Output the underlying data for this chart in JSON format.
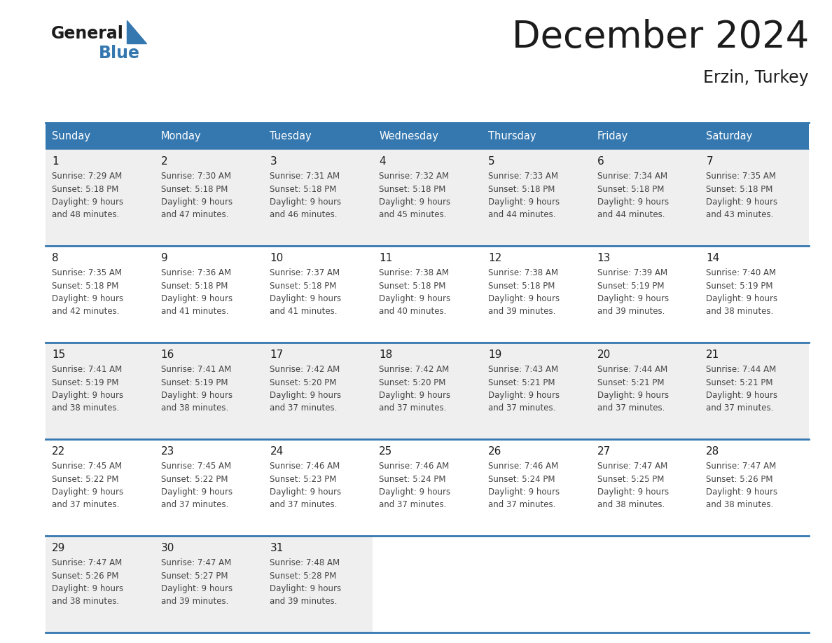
{
  "title": "December 2024",
  "subtitle": "Erzin, Turkey",
  "header_color": "#3578b0",
  "header_text_color": "#ffffff",
  "weekdays": [
    "Sunday",
    "Monday",
    "Tuesday",
    "Wednesday",
    "Thursday",
    "Friday",
    "Saturday"
  ],
  "background_color": "#ffffff",
  "cell_bg_even": "#efefef",
  "cell_bg_odd": "#ffffff",
  "border_color": "#3578b0",
  "days": [
    {
      "day": 1,
      "col": 0,
      "row": 0,
      "sunrise": "7:29 AM",
      "sunset": "5:18 PM",
      "daylight": "9 hours and 48 minutes."
    },
    {
      "day": 2,
      "col": 1,
      "row": 0,
      "sunrise": "7:30 AM",
      "sunset": "5:18 PM",
      "daylight": "9 hours and 47 minutes."
    },
    {
      "day": 3,
      "col": 2,
      "row": 0,
      "sunrise": "7:31 AM",
      "sunset": "5:18 PM",
      "daylight": "9 hours and 46 minutes."
    },
    {
      "day": 4,
      "col": 3,
      "row": 0,
      "sunrise": "7:32 AM",
      "sunset": "5:18 PM",
      "daylight": "9 hours and 45 minutes."
    },
    {
      "day": 5,
      "col": 4,
      "row": 0,
      "sunrise": "7:33 AM",
      "sunset": "5:18 PM",
      "daylight": "9 hours and 44 minutes."
    },
    {
      "day": 6,
      "col": 5,
      "row": 0,
      "sunrise": "7:34 AM",
      "sunset": "5:18 PM",
      "daylight": "9 hours and 44 minutes."
    },
    {
      "day": 7,
      "col": 6,
      "row": 0,
      "sunrise": "7:35 AM",
      "sunset": "5:18 PM",
      "daylight": "9 hours and 43 minutes."
    },
    {
      "day": 8,
      "col": 0,
      "row": 1,
      "sunrise": "7:35 AM",
      "sunset": "5:18 PM",
      "daylight": "9 hours and 42 minutes."
    },
    {
      "day": 9,
      "col": 1,
      "row": 1,
      "sunrise": "7:36 AM",
      "sunset": "5:18 PM",
      "daylight": "9 hours and 41 minutes."
    },
    {
      "day": 10,
      "col": 2,
      "row": 1,
      "sunrise": "7:37 AM",
      "sunset": "5:18 PM",
      "daylight": "9 hours and 41 minutes."
    },
    {
      "day": 11,
      "col": 3,
      "row": 1,
      "sunrise": "7:38 AM",
      "sunset": "5:18 PM",
      "daylight": "9 hours and 40 minutes."
    },
    {
      "day": 12,
      "col": 4,
      "row": 1,
      "sunrise": "7:38 AM",
      "sunset": "5:18 PM",
      "daylight": "9 hours and 39 minutes."
    },
    {
      "day": 13,
      "col": 5,
      "row": 1,
      "sunrise": "7:39 AM",
      "sunset": "5:19 PM",
      "daylight": "9 hours and 39 minutes."
    },
    {
      "day": 14,
      "col": 6,
      "row": 1,
      "sunrise": "7:40 AM",
      "sunset": "5:19 PM",
      "daylight": "9 hours and 38 minutes."
    },
    {
      "day": 15,
      "col": 0,
      "row": 2,
      "sunrise": "7:41 AM",
      "sunset": "5:19 PM",
      "daylight": "9 hours and 38 minutes."
    },
    {
      "day": 16,
      "col": 1,
      "row": 2,
      "sunrise": "7:41 AM",
      "sunset": "5:19 PM",
      "daylight": "9 hours and 38 minutes."
    },
    {
      "day": 17,
      "col": 2,
      "row": 2,
      "sunrise": "7:42 AM",
      "sunset": "5:20 PM",
      "daylight": "9 hours and 37 minutes."
    },
    {
      "day": 18,
      "col": 3,
      "row": 2,
      "sunrise": "7:42 AM",
      "sunset": "5:20 PM",
      "daylight": "9 hours and 37 minutes."
    },
    {
      "day": 19,
      "col": 4,
      "row": 2,
      "sunrise": "7:43 AM",
      "sunset": "5:21 PM",
      "daylight": "9 hours and 37 minutes."
    },
    {
      "day": 20,
      "col": 5,
      "row": 2,
      "sunrise": "7:44 AM",
      "sunset": "5:21 PM",
      "daylight": "9 hours and 37 minutes."
    },
    {
      "day": 21,
      "col": 6,
      "row": 2,
      "sunrise": "7:44 AM",
      "sunset": "5:21 PM",
      "daylight": "9 hours and 37 minutes."
    },
    {
      "day": 22,
      "col": 0,
      "row": 3,
      "sunrise": "7:45 AM",
      "sunset": "5:22 PM",
      "daylight": "9 hours and 37 minutes."
    },
    {
      "day": 23,
      "col": 1,
      "row": 3,
      "sunrise": "7:45 AM",
      "sunset": "5:22 PM",
      "daylight": "9 hours and 37 minutes."
    },
    {
      "day": 24,
      "col": 2,
      "row": 3,
      "sunrise": "7:46 AM",
      "sunset": "5:23 PM",
      "daylight": "9 hours and 37 minutes."
    },
    {
      "day": 25,
      "col": 3,
      "row": 3,
      "sunrise": "7:46 AM",
      "sunset": "5:24 PM",
      "daylight": "9 hours and 37 minutes."
    },
    {
      "day": 26,
      "col": 4,
      "row": 3,
      "sunrise": "7:46 AM",
      "sunset": "5:24 PM",
      "daylight": "9 hours and 37 minutes."
    },
    {
      "day": 27,
      "col": 5,
      "row": 3,
      "sunrise": "7:47 AM",
      "sunset": "5:25 PM",
      "daylight": "9 hours and 38 minutes."
    },
    {
      "day": 28,
      "col": 6,
      "row": 3,
      "sunrise": "7:47 AM",
      "sunset": "5:26 PM",
      "daylight": "9 hours and 38 minutes."
    },
    {
      "day": 29,
      "col": 0,
      "row": 4,
      "sunrise": "7:47 AM",
      "sunset": "5:26 PM",
      "daylight": "9 hours and 38 minutes."
    },
    {
      "day": 30,
      "col": 1,
      "row": 4,
      "sunrise": "7:47 AM",
      "sunset": "5:27 PM",
      "daylight": "9 hours and 39 minutes."
    },
    {
      "day": 31,
      "col": 2,
      "row": 4,
      "sunrise": "7:48 AM",
      "sunset": "5:28 PM",
      "daylight": "9 hours and 39 minutes."
    }
  ]
}
